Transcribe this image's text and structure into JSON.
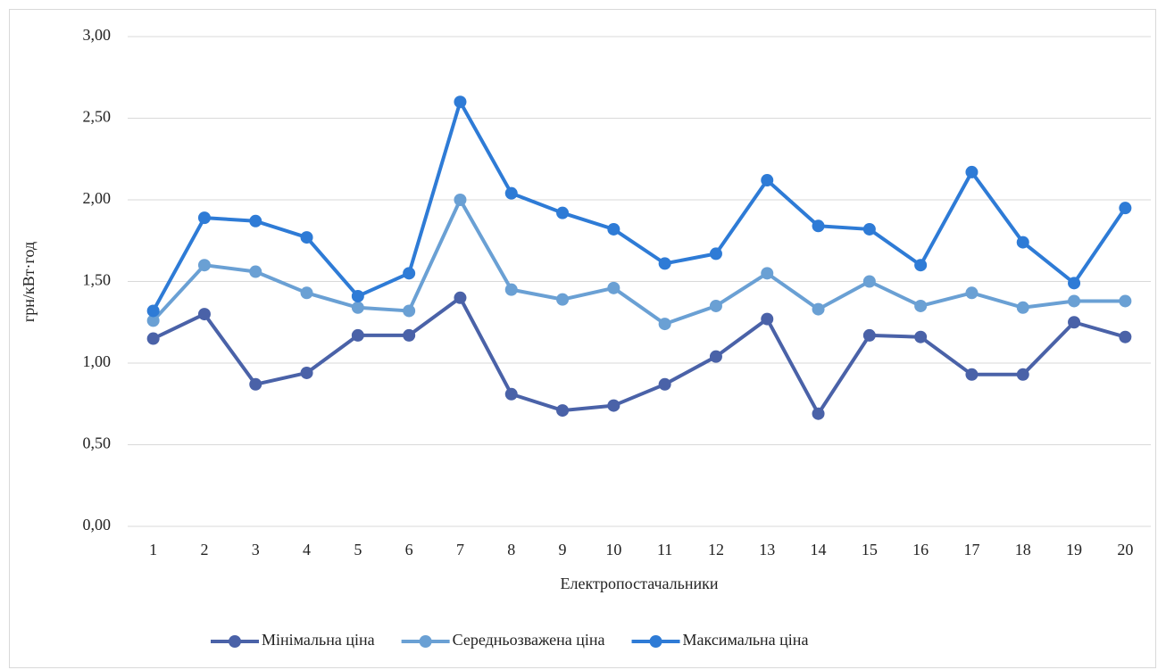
{
  "chart_data": {
    "type": "line",
    "y_label": "грн/кВт·год",
    "x_label": "Електропостачальники",
    "categories": [
      "1",
      "2",
      "3",
      "4",
      "5",
      "6",
      "7",
      "8",
      "9",
      "10",
      "11",
      "12",
      "13",
      "14",
      "15",
      "16",
      "17",
      "18",
      "19",
      "20"
    ],
    "series": [
      {
        "name": "Мінімальна ціна",
        "color": "#4a62a8",
        "values": [
          1.15,
          1.3,
          0.87,
          0.94,
          1.17,
          1.17,
          1.4,
          0.81,
          0.71,
          0.74,
          0.87,
          1.04,
          1.27,
          0.69,
          1.17,
          1.16,
          0.93,
          0.93,
          1.25,
          1.16
        ]
      },
      {
        "name": "Середньозважена ціна",
        "color": "#6aa0d4",
        "values": [
          1.26,
          1.6,
          1.56,
          1.43,
          1.34,
          1.32,
          2.0,
          1.45,
          1.39,
          1.46,
          1.24,
          1.35,
          1.55,
          1.33,
          1.5,
          1.35,
          1.43,
          1.34,
          1.38,
          1.38
        ]
      },
      {
        "name": "Максимальна ціна",
        "color": "#2e7bd6",
        "values": [
          1.32,
          1.89,
          1.87,
          1.77,
          1.41,
          1.55,
          2.6,
          2.04,
          1.92,
          1.82,
          1.61,
          1.67,
          2.12,
          1.84,
          1.82,
          1.6,
          2.17,
          1.74,
          1.49,
          1.95
        ]
      }
    ],
    "ylim": [
      0,
      3
    ],
    "yticks": [
      {
        "value": 0,
        "label": "0,00"
      },
      {
        "value": 0.5,
        "label": "0,50"
      },
      {
        "value": 1,
        "label": "1,00"
      },
      {
        "value": 1.5,
        "label": "1,50"
      },
      {
        "value": 2,
        "label": "2,00"
      },
      {
        "value": 2.5,
        "label": "2,50"
      },
      {
        "value": 3,
        "label": "3,00"
      }
    ],
    "grid": true,
    "legend": "bottom"
  }
}
